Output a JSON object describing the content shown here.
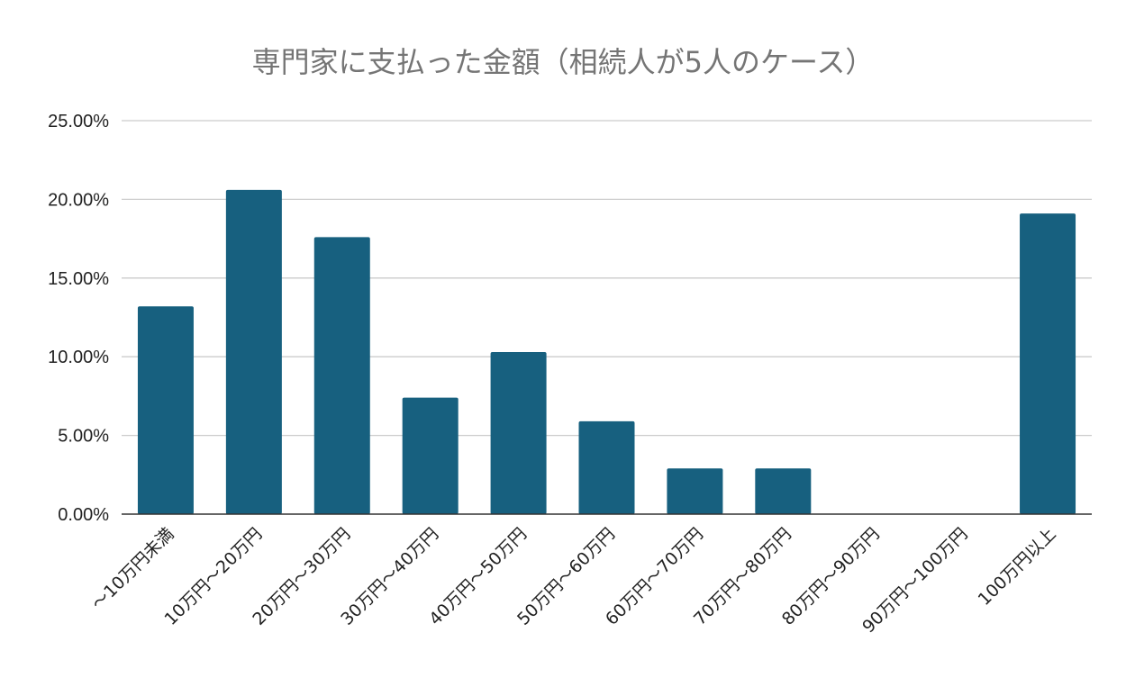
{
  "chart_data": {
    "type": "bar",
    "title": "専門家に支払った金額（相続人が5人のケース）",
    "xlabel": "",
    "ylabel": "",
    "ylim": [
      0,
      25
    ],
    "y_ticks": [
      "0.00%",
      "5.00%",
      "10.00%",
      "15.00%",
      "20.00%",
      "25.00%"
    ],
    "y_tick_values": [
      0,
      5,
      10,
      15,
      20,
      25
    ],
    "categories": [
      "～10万円未満",
      "10万円～20万円",
      "20万円～30万円",
      "30万円～40万円",
      "40万円～50万円",
      "50万円～60万円",
      "60万円～70万円",
      "70万円～80万円",
      "80万円～90万円",
      "90万円～100万円",
      "100万円以上"
    ],
    "values": [
      13.2,
      20.6,
      17.6,
      7.4,
      10.3,
      5.9,
      2.9,
      2.9,
      0,
      0,
      19.1
    ],
    "unit": "%",
    "bar_color": "#17607f",
    "grid": true,
    "legend": "none"
  }
}
